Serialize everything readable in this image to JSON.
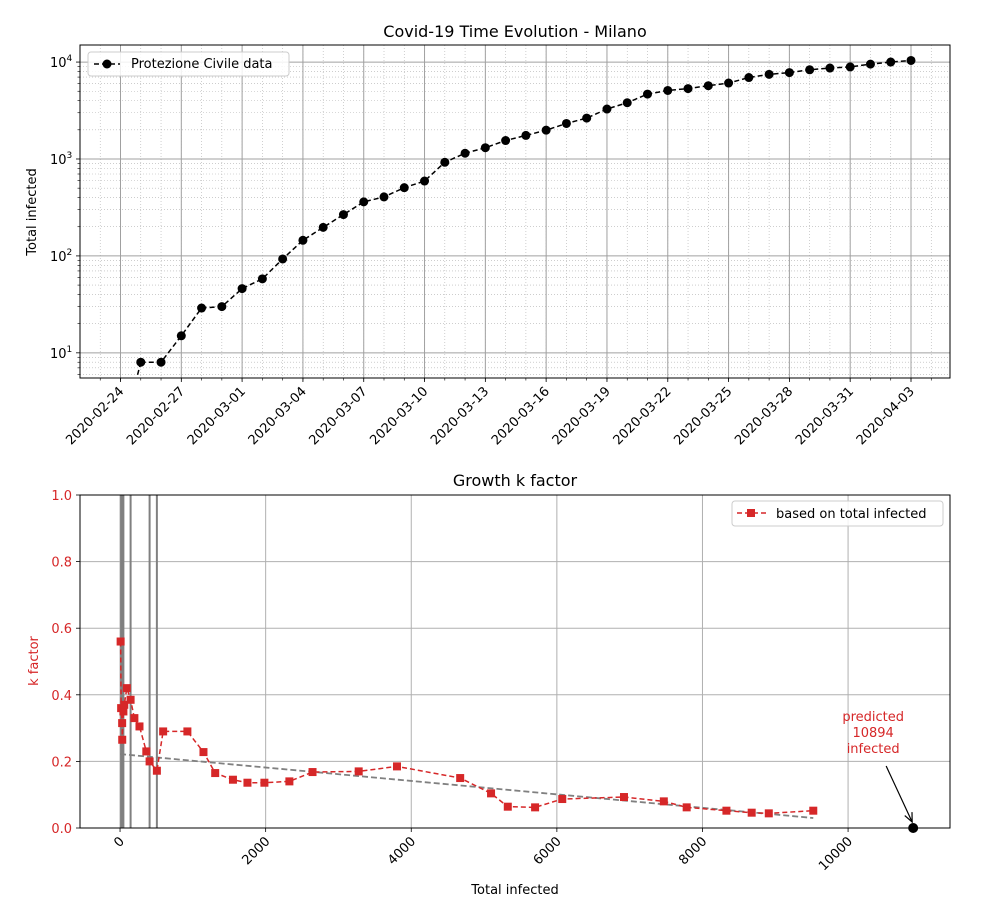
{
  "chart_data": [
    {
      "type": "line",
      "title": "Covid-19 Time Evolution - Milano",
      "xlabel": "",
      "ylabel": "Total infected",
      "yscale": "log",
      "ylim": [
        5.5,
        15000
      ],
      "y_tick_labels": [
        {
          "base": "10",
          "exp": "1",
          "value": 10
        },
        {
          "base": "10",
          "exp": "2",
          "value": 100
        },
        {
          "base": "10",
          "exp": "3",
          "value": 1000
        },
        {
          "base": "10",
          "exp": "4",
          "value": 10000
        }
      ],
      "x_tick_labels": [
        "2020-02-24",
        "2020-02-27",
        "2020-03-01",
        "2020-03-04",
        "2020-03-07",
        "2020-03-10",
        "2020-03-13",
        "2020-03-16",
        "2020-03-19",
        "2020-03-22",
        "2020-03-25",
        "2020-03-28",
        "2020-03-31",
        "2020-04-03"
      ],
      "grid": true,
      "legend_position": "top-left",
      "series": [
        {
          "name": "Protezione Civile data",
          "color": "#000000",
          "style": "dashed-circle",
          "x": [
            "2020-02-25",
            "2020-02-26",
            "2020-02-27",
            "2020-02-28",
            "2020-02-29",
            "2020-03-01",
            "2020-03-02",
            "2020-03-03",
            "2020-03-04",
            "2020-03-05",
            "2020-03-06",
            "2020-03-07",
            "2020-03-08",
            "2020-03-09",
            "2020-03-10",
            "2020-03-11",
            "2020-03-12",
            "2020-03-13",
            "2020-03-14",
            "2020-03-15",
            "2020-03-16",
            "2020-03-17",
            "2020-03-18",
            "2020-03-19",
            "2020-03-20",
            "2020-03-21",
            "2020-03-22",
            "2020-03-23",
            "2020-03-24",
            "2020-03-25",
            "2020-03-26",
            "2020-03-27",
            "2020-03-28",
            "2020-03-29",
            "2020-03-30",
            "2020-03-31",
            "2020-04-01",
            "2020-04-02",
            "2020-04-03"
          ],
          "values": [
            8,
            8,
            15,
            29,
            30,
            46,
            58,
            93,
            145,
            197,
            267,
            361,
            406,
            506,
            592,
            925,
            1146,
            1307,
            1551,
            1750,
            1983,
            2326,
            2644,
            3278,
            3804,
            4672,
            5096,
            5326,
            5701,
            6074,
            6922,
            7469,
            7783,
            8329,
            8676,
            8911,
            9522,
            10004,
            10391
          ]
        }
      ]
    },
    {
      "type": "scatter",
      "title": "Growth k factor",
      "xlabel": "Total infected",
      "ylabel": "k factor",
      "xlim": [
        -550,
        11400
      ],
      "ylim": [
        0,
        1.0
      ],
      "x_ticks": [
        0,
        2000,
        4000,
        6000,
        8000,
        10000
      ],
      "y_ticks": [
        0.0,
        0.2,
        0.4,
        0.6,
        0.8,
        1.0
      ],
      "grid": true,
      "legend_position": "top-right",
      "axis_color": "#d62728",
      "vertical_lines_x": [
        15,
        29,
        30,
        46,
        145,
        406,
        506
      ],
      "series": [
        {
          "name": "based on total infected",
          "color": "#d62728",
          "style": "dashed-square",
          "x": [
            8,
            15,
            29,
            30,
            46,
            58,
            93,
            145,
            197,
            267,
            361,
            406,
            506,
            592,
            925,
            1146,
            1307,
            1551,
            1750,
            1983,
            2326,
            2644,
            3278,
            3804,
            4672,
            5096,
            5326,
            5701,
            6074,
            6922,
            7469,
            7783,
            8329,
            8676,
            8911,
            9522
          ],
          "values": [
            0.56,
            0.36,
            0.315,
            0.265,
            0.35,
            0.37,
            0.42,
            0.385,
            0.33,
            0.305,
            0.23,
            0.2,
            0.172,
            0.29,
            0.29,
            0.228,
            0.165,
            0.145,
            0.136,
            0.136,
            0.14,
            0.168,
            0.17,
            0.185,
            0.15,
            0.104,
            0.064,
            0.062,
            0.087,
            0.093,
            0.08,
            0.062,
            0.052,
            0.046,
            0.044,
            0.052
          ]
        }
      ],
      "trend_line": {
        "color": "#808080",
        "x": [
          0,
          9522
        ],
        "values": [
          0.222,
          0.03
        ]
      },
      "annotation": {
        "lines": [
          "predicted",
          "10894",
          "infected"
        ],
        "point": {
          "x": 10894,
          "value": 0.0
        },
        "text_color": "#d62728",
        "point_color": "#000000"
      }
    }
  ]
}
